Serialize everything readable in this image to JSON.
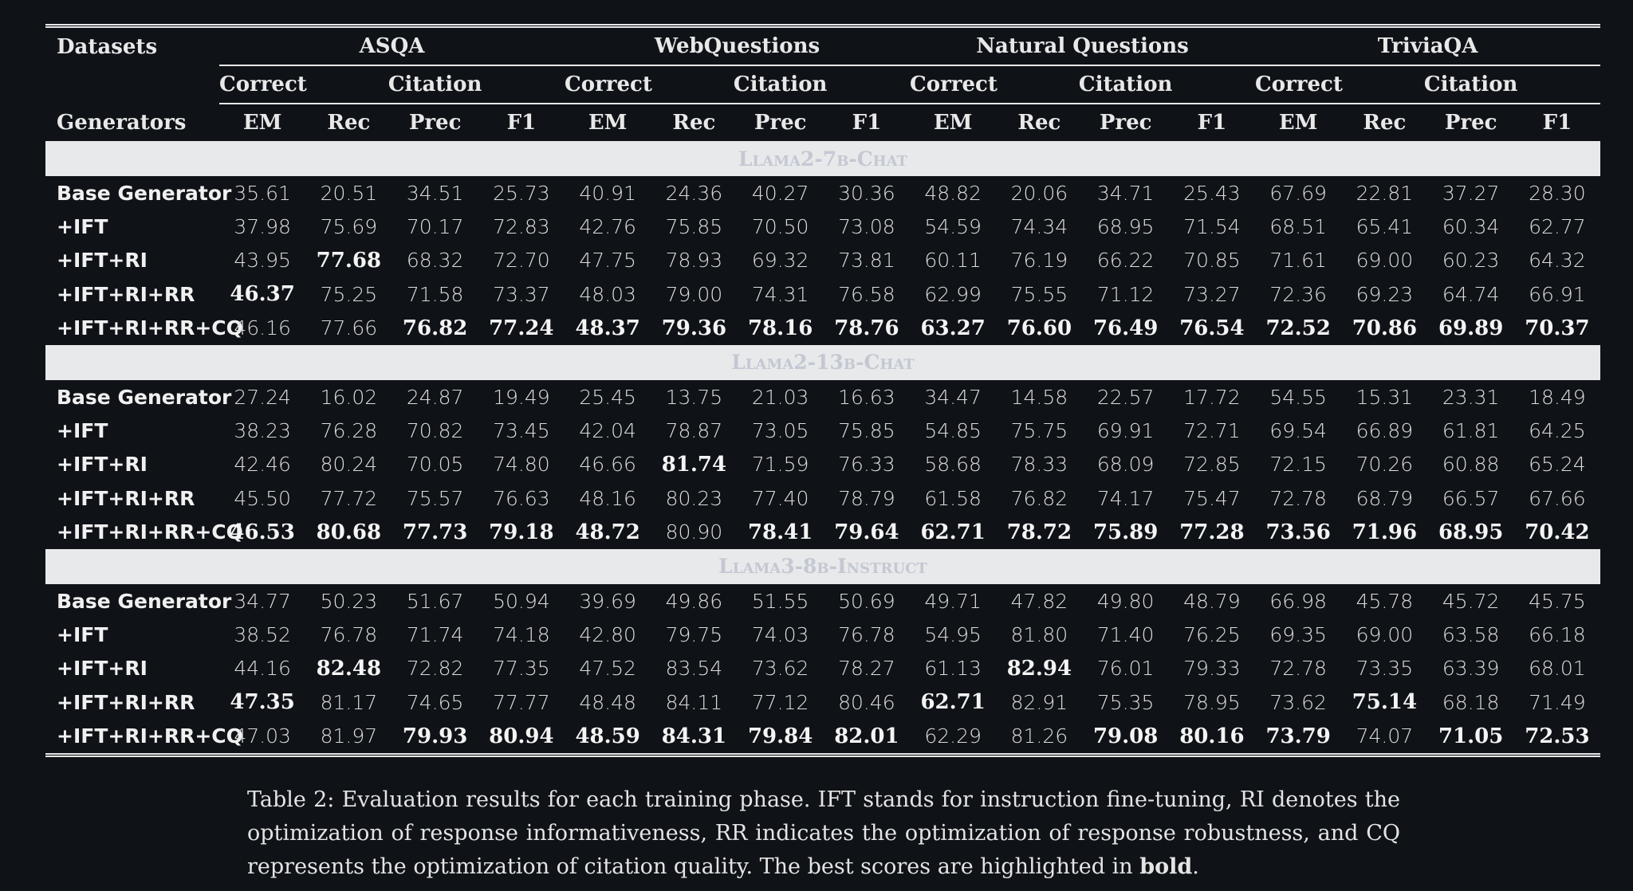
{
  "table": {
    "header": {
      "datasets": "Datasets",
      "generators": "Generators",
      "groups": [
        {
          "name": "ASQA",
          "correct": "Correct",
          "citation": "Citation"
        },
        {
          "name": "WebQuestions",
          "correct": "Correct",
          "citation": "Citation"
        },
        {
          "name": "Natural Questions",
          "correct": "Correct",
          "citation": "Citation"
        },
        {
          "name": "TriviaQA",
          "correct": "Correct",
          "citation": "Citation"
        }
      ],
      "metrics": [
        "EM",
        "Rec",
        "Prec",
        "F1",
        "EM",
        "Rec",
        "Prec",
        "F1",
        "EM",
        "Rec",
        "Prec",
        "F1",
        "EM",
        "Rec",
        "Prec",
        "F1"
      ]
    },
    "sections": [
      {
        "name": "Llama2-7b-Chat",
        "rows": [
          {
            "label": "Base Generator",
            "values": [
              "35.61",
              "20.51",
              "34.51",
              "25.73",
              "40.91",
              "24.36",
              "40.27",
              "30.36",
              "48.82",
              "20.06",
              "34.71",
              "25.43",
              "67.69",
              "22.81",
              "37.27",
              "28.30"
            ],
            "bold": []
          },
          {
            "label": "+IFT",
            "values": [
              "37.98",
              "75.69",
              "70.17",
              "72.83",
              "42.76",
              "75.85",
              "70.50",
              "73.08",
              "54.59",
              "74.34",
              "68.95",
              "71.54",
              "68.51",
              "65.41",
              "60.34",
              "62.77"
            ],
            "bold": []
          },
          {
            "label": "+IFT+RI",
            "values": [
              "43.95",
              "77.68",
              "68.32",
              "72.70",
              "47.75",
              "78.93",
              "69.32",
              "73.81",
              "60.11",
              "76.19",
              "66.22",
              "70.85",
              "71.61",
              "69.00",
              "60.23",
              "64.32"
            ],
            "bold": [
              1
            ]
          },
          {
            "label": "+IFT+RI+RR",
            "values": [
              "46.37",
              "75.25",
              "71.58",
              "73.37",
              "48.03",
              "79.00",
              "74.31",
              "76.58",
              "62.99",
              "75.55",
              "71.12",
              "73.27",
              "72.36",
              "69.23",
              "64.74",
              "66.91"
            ],
            "bold": [
              0
            ]
          },
          {
            "label": "+IFT+RI+RR+CQ",
            "values": [
              "46.16",
              "77.66",
              "76.82",
              "77.24",
              "48.37",
              "79.36",
              "78.16",
              "78.76",
              "63.27",
              "76.60",
              "76.49",
              "76.54",
              "72.52",
              "70.86",
              "69.89",
              "70.37"
            ],
            "bold": [
              2,
              3,
              4,
              5,
              6,
              7,
              8,
              9,
              10,
              11,
              12,
              13,
              14,
              15
            ]
          }
        ]
      },
      {
        "name": "Llama2-13b-Chat",
        "rows": [
          {
            "label": "Base Generator",
            "values": [
              "27.24",
              "16.02",
              "24.87",
              "19.49",
              "25.45",
              "13.75",
              "21.03",
              "16.63",
              "34.47",
              "14.58",
              "22.57",
              "17.72",
              "54.55",
              "15.31",
              "23.31",
              "18.49"
            ],
            "bold": []
          },
          {
            "label": "+IFT",
            "values": [
              "38.23",
              "76.28",
              "70.82",
              "73.45",
              "42.04",
              "78.87",
              "73.05",
              "75.85",
              "54.85",
              "75.75",
              "69.91",
              "72.71",
              "69.54",
              "66.89",
              "61.81",
              "64.25"
            ],
            "bold": []
          },
          {
            "label": "+IFT+RI",
            "values": [
              "42.46",
              "80.24",
              "70.05",
              "74.80",
              "46.66",
              "81.74",
              "71.59",
              "76.33",
              "58.68",
              "78.33",
              "68.09",
              "72.85",
              "72.15",
              "70.26",
              "60.88",
              "65.24"
            ],
            "bold": [
              5
            ]
          },
          {
            "label": "+IFT+RI+RR",
            "values": [
              "45.50",
              "77.72",
              "75.57",
              "76.63",
              "48.16",
              "80.23",
              "77.40",
              "78.79",
              "61.58",
              "76.82",
              "74.17",
              "75.47",
              "72.78",
              "68.79",
              "66.57",
              "67.66"
            ],
            "bold": []
          },
          {
            "label": "+IFT+RI+RR+CQ",
            "values": [
              "46.53",
              "80.68",
              "77.73",
              "79.18",
              "48.72",
              "80.90",
              "78.41",
              "79.64",
              "62.71",
              "78.72",
              "75.89",
              "77.28",
              "73.56",
              "71.96",
              "68.95",
              "70.42"
            ],
            "bold": [
              0,
              1,
              2,
              3,
              4,
              6,
              7,
              8,
              9,
              10,
              11,
              12,
              13,
              14,
              15
            ]
          }
        ]
      },
      {
        "name": "Llama3-8b-Instruct",
        "rows": [
          {
            "label": "Base Generator",
            "values": [
              "34.77",
              "50.23",
              "51.67",
              "50.94",
              "39.69",
              "49.86",
              "51.55",
              "50.69",
              "49.71",
              "47.82",
              "49.80",
              "48.79",
              "66.98",
              "45.78",
              "45.72",
              "45.75"
            ],
            "bold": []
          },
          {
            "label": "+IFT",
            "values": [
              "38.52",
              "76.78",
              "71.74",
              "74.18",
              "42.80",
              "79.75",
              "74.03",
              "76.78",
              "54.95",
              "81.80",
              "71.40",
              "76.25",
              "69.35",
              "69.00",
              "63.58",
              "66.18"
            ],
            "bold": []
          },
          {
            "label": "+IFT+RI",
            "values": [
              "44.16",
              "82.48",
              "72.82",
              "77.35",
              "47.52",
              "83.54",
              "73.62",
              "78.27",
              "61.13",
              "82.94",
              "76.01",
              "79.33",
              "72.78",
              "73.35",
              "63.39",
              "68.01"
            ],
            "bold": [
              1,
              9
            ]
          },
          {
            "label": "+IFT+RI+RR",
            "values": [
              "47.35",
              "81.17",
              "74.65",
              "77.77",
              "48.48",
              "84.11",
              "77.12",
              "80.46",
              "62.71",
              "82.91",
              "75.35",
              "78.95",
              "73.62",
              "75.14",
              "68.18",
              "71.49"
            ],
            "bold": [
              0,
              8,
              13
            ]
          },
          {
            "label": "+IFT+RI+RR+CQ",
            "values": [
              "47.03",
              "81.97",
              "79.93",
              "80.94",
              "48.59",
              "84.31",
              "79.84",
              "82.01",
              "62.29",
              "81.26",
              "79.08",
              "80.16",
              "73.79",
              "74.07",
              "71.05",
              "72.53"
            ],
            "bold": [
              2,
              3,
              4,
              5,
              6,
              7,
              10,
              11,
              12,
              14,
              15
            ]
          }
        ]
      }
    ]
  },
  "caption": {
    "label": "Table 2:",
    "text": "Evaluation results for each training phase. IFT stands for instruction fine-tuning, RI denotes the optimization of response informativeness, RR indicates the optimization of response robustness, and CQ represents the optimization of citation quality. The best scores are highlighted in",
    "bold": "bold",
    "end": "."
  }
}
